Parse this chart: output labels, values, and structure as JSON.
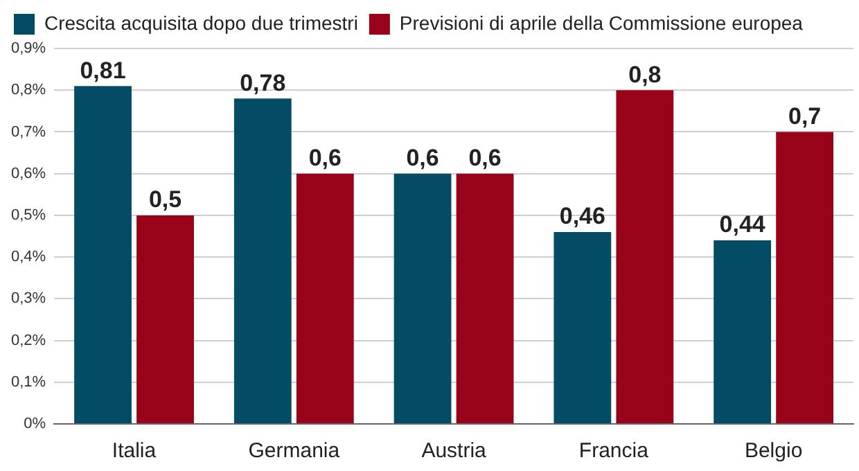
{
  "chart_data": {
    "type": "bar",
    "categories": [
      "Italia",
      "Germania",
      "Austria",
      "Francia",
      "Belgio"
    ],
    "series": [
      {
        "name": "Crescita acquisita dopo due trimestri",
        "color": "#044c65",
        "values": [
          0.81,
          0.78,
          0.6,
          0.46,
          0.44
        ],
        "value_labels": [
          "0,81",
          "0,78",
          "0,6",
          "0,46",
          "0,44"
        ]
      },
      {
        "name": "Previsioni di aprile della Commissione europea",
        "color": "#980319",
        "values": [
          0.5,
          0.6,
          0.6,
          0.8,
          0.7
        ],
        "value_labels": [
          "0,5",
          "0,6",
          "0,6",
          "0,8",
          "0,7"
        ]
      }
    ],
    "ylim": [
      0,
      0.9
    ],
    "yticks": [
      {
        "value": 0,
        "label": "0%"
      },
      {
        "value": 0.1,
        "label": "0,1%"
      },
      {
        "value": 0.2,
        "label": "0,2%"
      },
      {
        "value": 0.3,
        "label": "0,3%"
      },
      {
        "value": 0.4,
        "label": "0,4%"
      },
      {
        "value": 0.5,
        "label": "0,5%"
      },
      {
        "value": 0.6,
        "label": "0,6%"
      },
      {
        "value": 0.7,
        "label": "0,7%"
      },
      {
        "value": 0.8,
        "label": "0,8%"
      },
      {
        "value": 0.9,
        "label": "0,9%"
      }
    ],
    "grid": "y",
    "legend": "top left"
  }
}
